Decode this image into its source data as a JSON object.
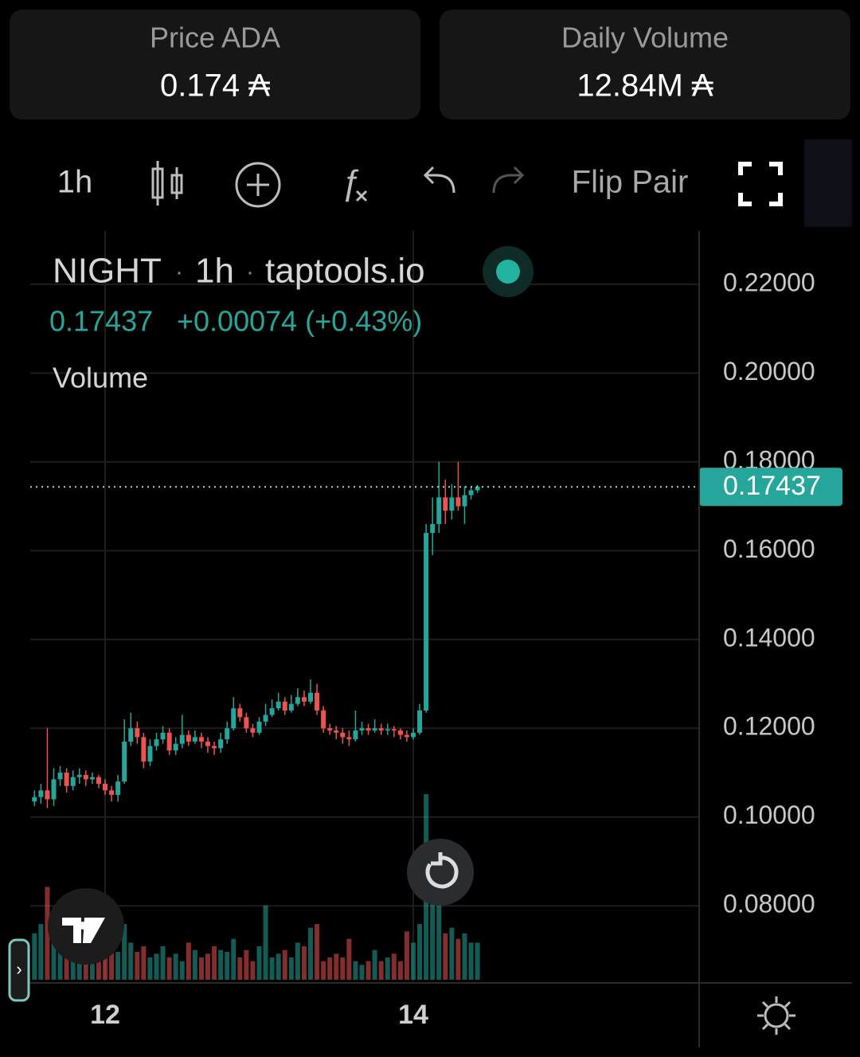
{
  "header": {
    "price_label": "Price ADA",
    "price_value": "0.174 ₳",
    "volume_label": "Daily Volume",
    "volume_value": "12.84M ₳"
  },
  "toolbar": {
    "interval": "1h",
    "flip": "Flip Pair"
  },
  "legend": {
    "symbol": "NIGHT",
    "interval": "1h",
    "source": "taptools.io",
    "change": "+0.00074 (+0.43%)",
    "volume": "Volume"
  },
  "chart_data": {
    "type": "candlestick",
    "last_price": 0.17437,
    "up_color": "#26a69a",
    "down_color": "#ef5350",
    "x": [
      -11,
      -10,
      -9,
      -8,
      -7,
      -6,
      -5,
      -4,
      -3,
      -2,
      -1,
      0,
      1,
      2,
      3,
      4,
      5,
      6,
      7,
      8,
      9,
      10,
      11,
      12,
      13,
      14,
      15,
      16,
      17,
      18,
      19,
      20,
      21,
      22,
      23,
      24,
      25,
      26,
      27,
      28,
      29,
      30,
      31,
      32,
      33,
      34,
      35,
      36,
      37,
      38,
      39,
      40,
      41,
      42,
      43,
      44,
      45,
      46,
      47,
      48,
      49,
      50,
      51,
      52,
      53,
      54,
      55,
      56,
      57,
      58
    ],
    "open": [
      0.1035,
      0.1045,
      0.106,
      0.104,
      0.1085,
      0.11,
      0.107,
      0.109,
      0.1095,
      0.1085,
      0.109,
      0.1075,
      0.106,
      0.105,
      0.108,
      0.117,
      0.12,
      0.118,
      0.1125,
      0.116,
      0.1175,
      0.119,
      0.115,
      0.1165,
      0.1185,
      0.117,
      0.118,
      0.117,
      0.116,
      0.1155,
      0.1175,
      0.12,
      0.1245,
      0.1225,
      0.12,
      0.119,
      0.1215,
      0.123,
      0.1245,
      0.126,
      0.124,
      0.1255,
      0.127,
      0.126,
      0.128,
      0.124,
      0.12,
      0.1195,
      0.119,
      0.118,
      0.1175,
      0.1195,
      0.12,
      0.1195,
      0.12,
      0.1195,
      0.1198,
      0.1195,
      0.1185,
      0.118,
      0.119,
      0.124,
      0.164,
      0.166,
      0.172,
      0.169,
      0.172,
      0.17,
      0.1725,
      0.1736
    ],
    "high": [
      0.106,
      0.1075,
      0.12,
      0.111,
      0.1115,
      0.111,
      0.1105,
      0.111,
      0.1105,
      0.11,
      0.1095,
      0.1085,
      0.107,
      0.1095,
      0.122,
      0.1235,
      0.1215,
      0.119,
      0.1175,
      0.119,
      0.1205,
      0.12,
      0.118,
      0.123,
      0.1195,
      0.1195,
      0.119,
      0.118,
      0.117,
      0.119,
      0.1215,
      0.127,
      0.1255,
      0.1235,
      0.121,
      0.1225,
      0.1255,
      0.1265,
      0.128,
      0.127,
      0.1275,
      0.129,
      0.1285,
      0.131,
      0.13,
      0.125,
      0.121,
      0.1205,
      0.12,
      0.1195,
      0.124,
      0.1215,
      0.121,
      0.122,
      0.121,
      0.121,
      0.1205,
      0.12,
      0.1195,
      0.12,
      0.1255,
      0.166,
      0.172,
      0.18,
      0.176,
      0.175,
      0.18,
      0.1745,
      0.1745,
      0.1748
    ],
    "low": [
      0.1025,
      0.103,
      0.102,
      0.1025,
      0.107,
      0.1055,
      0.106,
      0.1075,
      0.107,
      0.1075,
      0.1065,
      0.105,
      0.1035,
      0.1035,
      0.1075,
      0.116,
      0.1165,
      0.111,
      0.1115,
      0.115,
      0.1165,
      0.114,
      0.114,
      0.1155,
      0.116,
      0.1165,
      0.1155,
      0.1145,
      0.114,
      0.1145,
      0.1165,
      0.1195,
      0.1215,
      0.119,
      0.118,
      0.1185,
      0.1205,
      0.1225,
      0.124,
      0.123,
      0.1235,
      0.125,
      0.125,
      0.1255,
      0.123,
      0.119,
      0.1185,
      0.1175,
      0.1165,
      0.116,
      0.117,
      0.1185,
      0.1185,
      0.119,
      0.1185,
      0.1185,
      0.118,
      0.1175,
      0.117,
      0.1175,
      0.1185,
      0.1235,
      0.159,
      0.164,
      0.166,
      0.167,
      0.169,
      0.166,
      0.1715,
      0.173
    ],
    "close": [
      0.1045,
      0.106,
      0.104,
      0.1085,
      0.11,
      0.107,
      0.109,
      0.1095,
      0.1085,
      0.109,
      0.1075,
      0.106,
      0.105,
      0.108,
      0.117,
      0.12,
      0.118,
      0.1125,
      0.116,
      0.1175,
      0.119,
      0.115,
      0.1165,
      0.1185,
      0.117,
      0.118,
      0.117,
      0.116,
      0.1155,
      0.1175,
      0.12,
      0.1245,
      0.1225,
      0.12,
      0.119,
      0.1215,
      0.123,
      0.1245,
      0.126,
      0.124,
      0.1255,
      0.127,
      0.126,
      0.128,
      0.124,
      0.12,
      0.1195,
      0.119,
      0.118,
      0.1175,
      0.1195,
      0.12,
      0.1195,
      0.12,
      0.1195,
      0.1198,
      0.1195,
      0.1185,
      0.118,
      0.119,
      0.124,
      0.164,
      0.166,
      0.172,
      0.169,
      0.172,
      0.17,
      0.1725,
      0.1736,
      0.17437
    ],
    "volume": [
      25,
      30,
      50,
      35,
      20,
      28,
      22,
      18,
      15,
      20,
      25,
      18,
      22,
      15,
      30,
      20,
      15,
      18,
      12,
      14,
      18,
      12,
      14,
      10,
      20,
      16,
      12,
      14,
      18,
      16,
      15,
      22,
      12,
      16,
      10,
      18,
      40,
      12,
      14,
      16,
      12,
      20,
      18,
      28,
      30,
      10,
      12,
      14,
      12,
      22,
      10,
      8,
      10,
      16,
      10,
      12,
      14,
      10,
      26,
      20,
      30,
      100,
      70,
      40,
      25,
      28,
      22,
      25,
      20,
      20
    ],
    "xlim": [
      -11.66,
      92.53
    ],
    "xticks": [
      {
        "value": 0,
        "label": "12"
      },
      {
        "value": 48,
        "label": "14"
      }
    ],
    "ylim": [
      0.063,
      0.232
    ],
    "yticks": [
      {
        "value": 0.08,
        "label": "0.08000"
      },
      {
        "value": 0.1,
        "label": "0.10000"
      },
      {
        "value": 0.12,
        "label": "0.12000"
      },
      {
        "value": 0.14,
        "label": "0.14000"
      },
      {
        "value": 0.16,
        "label": "0.16000"
      },
      {
        "value": 0.18,
        "label": "0.18000"
      },
      {
        "value": 0.2,
        "label": "0.20000"
      },
      {
        "value": 0.22,
        "label": "0.22000"
      }
    ],
    "grid": true
  }
}
